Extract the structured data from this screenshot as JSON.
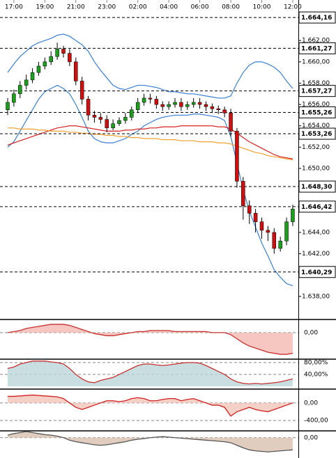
{
  "chart_data": [
    {
      "type": "candlestick",
      "categories": [
        null,
        "17:00",
        null,
        null,
        null,
        null,
        "19:00",
        null,
        null,
        null,
        null,
        "21:00",
        null,
        null,
        null,
        null,
        "23:00",
        null,
        null,
        null,
        null,
        "02:00",
        null,
        null,
        null,
        null,
        "04:00",
        null,
        null,
        null,
        null,
        "06:00",
        null,
        null,
        null,
        null,
        "08:00",
        null,
        null,
        null,
        null,
        "10:00",
        null,
        null,
        null,
        null,
        "12:00"
      ],
      "open": [
        1.6555,
        1.6562,
        1.657,
        1.6578,
        1.6583,
        1.659,
        1.6596,
        1.66,
        1.6605,
        1.6612,
        1.6608,
        1.66,
        1.6582,
        1.6565,
        1.655,
        1.6548,
        1.6546,
        1.6538,
        1.6542,
        1.6545,
        1.6548,
        1.6555,
        1.6562,
        1.6566,
        1.6565,
        1.656,
        1.6558,
        1.656,
        1.6562,
        1.6558,
        1.656,
        1.6562,
        1.656,
        1.6558,
        1.6556,
        1.6555,
        1.6552,
        1.6535,
        1.6488,
        1.6465,
        1.6458,
        1.645,
        1.6442,
        1.644,
        1.6425,
        1.6432,
        1.645
      ],
      "high": [
        1.6566,
        1.6574,
        1.6582,
        1.6588,
        1.6594,
        1.66,
        1.6604,
        1.661,
        1.6618,
        1.6615,
        1.6612,
        1.6604,
        1.6586,
        1.6568,
        1.6554,
        1.6552,
        1.655,
        1.6546,
        1.6548,
        1.6552,
        1.6558,
        1.6566,
        1.657,
        1.657,
        1.6568,
        1.6563,
        1.6563,
        1.6566,
        1.6566,
        1.6563,
        1.6566,
        1.6566,
        1.6563,
        1.6561,
        1.6559,
        1.6558,
        1.6556,
        1.6538,
        1.6492,
        1.647,
        1.6462,
        1.6454,
        1.6446,
        1.6444,
        1.6436,
        1.6454,
        1.6466
      ],
      "low": [
        1.655,
        1.6558,
        1.6566,
        1.6574,
        1.658,
        1.6587,
        1.6593,
        1.6597,
        1.6602,
        1.6604,
        1.6596,
        1.6578,
        1.656,
        1.6545,
        1.6543,
        1.6542,
        1.6534,
        1.6536,
        1.654,
        1.6542,
        1.6545,
        1.6552,
        1.6559,
        1.6561,
        1.6556,
        1.6554,
        1.6555,
        1.6557,
        1.6554,
        1.6555,
        1.6557,
        1.6556,
        1.6554,
        1.6552,
        1.6551,
        1.6548,
        1.653,
        1.6482,
        1.6452,
        1.6448,
        1.644,
        1.6434,
        1.6432,
        1.642,
        1.6422,
        1.6428,
        1.6446
      ],
      "close": [
        1.6562,
        1.657,
        1.6578,
        1.6583,
        1.659,
        1.6596,
        1.66,
        1.6605,
        1.6612,
        1.6608,
        1.66,
        1.6582,
        1.6565,
        1.655,
        1.6548,
        1.6546,
        1.6538,
        1.6542,
        1.6545,
        1.6548,
        1.6555,
        1.6562,
        1.6566,
        1.6565,
        1.656,
        1.6558,
        1.656,
        1.6562,
        1.6558,
        1.656,
        1.6562,
        1.656,
        1.6558,
        1.6556,
        1.6555,
        1.6552,
        1.6535,
        1.6488,
        1.6465,
        1.6458,
        1.645,
        1.6442,
        1.644,
        1.6425,
        1.6432,
        1.645,
        1.6462
      ],
      "up_color": "#1e9e1e",
      "down_color": "#cc1010",
      "series": [
        {
          "color": "#3a7fd5",
          "values": [
            1.659,
            1.6598,
            1.6605,
            1.661,
            1.6615,
            1.6618,
            1.662,
            1.6622,
            1.6625,
            1.6626,
            1.6624,
            1.662,
            1.6616,
            1.661,
            1.66,
            1.6592,
            1.6585,
            1.6578,
            1.6575,
            1.6574,
            1.6576,
            1.6578,
            1.6578,
            1.6577,
            1.6576,
            1.6574,
            1.6572,
            1.6572,
            1.6571,
            1.657,
            1.657,
            1.6569,
            1.6568,
            1.6567,
            1.6566,
            1.6566,
            1.6568,
            1.658,
            1.659,
            1.6597,
            1.66,
            1.66,
            1.6598,
            1.6595,
            1.659,
            1.6582,
            1.6575
          ]
        },
        {
          "color": "#3a7fd5",
          "values": [
            1.652,
            1.6525,
            1.6535,
            1.6545,
            1.6555,
            1.6565,
            1.6572,
            1.6575,
            1.6578,
            1.6575,
            1.657,
            1.656,
            1.6548,
            1.6535,
            1.6528,
            1.6525,
            1.6524,
            1.6524,
            1.6526,
            1.6528,
            1.6532,
            1.6535,
            1.654,
            1.6543,
            1.6546,
            1.6548,
            1.6549,
            1.655,
            1.655,
            1.655,
            1.6551,
            1.6551,
            1.655,
            1.6549,
            1.6548,
            1.6545,
            1.653,
            1.6505,
            1.648,
            1.646,
            1.6445,
            1.643,
            1.6418,
            1.6405,
            1.6398,
            1.6392,
            1.639
          ]
        },
        {
          "color": "#d62020",
          "values": [
            1.6522,
            1.6524,
            1.6526,
            1.6528,
            1.653,
            1.6532,
            1.6534,
            1.6536,
            1.6538,
            1.6539,
            1.654,
            1.654,
            1.6539,
            1.6538,
            1.6537,
            1.6536,
            1.6535,
            1.6535,
            1.6535,
            1.6536,
            1.6536,
            1.6537,
            1.6537,
            1.6538,
            1.6538,
            1.6539,
            1.6539,
            1.6539,
            1.654,
            1.654,
            1.654,
            1.654,
            1.654,
            1.654,
            1.6539,
            1.6539,
            1.6537,
            1.6533,
            1.6529,
            1.6525,
            1.6522,
            1.6519,
            1.6516,
            1.6513,
            1.6511,
            1.651,
            1.6509
          ]
        },
        {
          "color": "#f0a030",
          "values": [
            1.6538,
            1.6538,
            1.6537,
            1.6537,
            1.6537,
            1.6536,
            1.6536,
            1.6535,
            1.6535,
            1.6535,
            1.6534,
            1.6534,
            1.6533,
            1.6533,
            1.6532,
            1.6532,
            1.6531,
            1.6531,
            1.653,
            1.653,
            1.6529,
            1.6529,
            1.6528,
            1.6528,
            1.6528,
            1.6527,
            1.6527,
            1.6527,
            1.6526,
            1.6526,
            1.6526,
            1.6525,
            1.6525,
            1.6525,
            1.6524,
            1.6524,
            1.6523,
            1.6521,
            1.6519,
            1.6517,
            1.6515,
            1.6514,
            1.6512,
            1.6511,
            1.651,
            1.6509,
            1.6508
          ]
        }
      ],
      "ylim": [
        1.6359,
        1.6658
      ],
      "yticks": [
        {
          "value": 1.662,
          "label": "1.662,00"
        },
        {
          "value": 1.66,
          "label": "1.660,00"
        },
        {
          "value": 1.658,
          "label": "1.658,00"
        },
        {
          "value": 1.656,
          "label": "1.656,00"
        },
        {
          "value": 1.654,
          "label": "1.654,00"
        },
        {
          "value": 1.652,
          "label": "1.652,00"
        },
        {
          "value": 1.65,
          "label": "1.650,00"
        },
        {
          "value": 1.644,
          "label": "1.644,00"
        },
        {
          "value": 1.642,
          "label": "1.642,00"
        },
        {
          "value": 1.638,
          "label": "1.638,00"
        }
      ],
      "levels": [
        {
          "value": 1.66416,
          "label": "1.664,16"
        },
        {
          "value": 1.66127,
          "label": "1.661,27"
        },
        {
          "value": 1.65727,
          "label": "1.657,27"
        },
        {
          "value": 1.65526,
          "label": "1.655,26"
        },
        {
          "value": 1.65326,
          "label": "1.653,26"
        },
        {
          "value": 1.6483,
          "label": "1.648,30"
        },
        {
          "value": 1.64642,
          "label": "1.646,42"
        },
        {
          "value": 1.64029,
          "label": "1.640,29"
        }
      ]
    },
    {
      "type": "line",
      "color": "#c83030",
      "fill": "#f4b8b0",
      "values": [
        0,
        1,
        2,
        4,
        5,
        6,
        7,
        8,
        8,
        8,
        7,
        5,
        3,
        1,
        -1,
        -2,
        -3,
        -3,
        -2,
        -1,
        0,
        1,
        1,
        2,
        2,
        2,
        2,
        1,
        1,
        1,
        1,
        1,
        1,
        0,
        0,
        0,
        -2,
        -6,
        -10,
        -13,
        -15,
        -17,
        -19,
        -20,
        -21,
        -21,
        -20
      ],
      "ylim": [
        -25,
        12
      ],
      "yticks": [
        {
          "value": 0,
          "label": "0,00"
        }
      ]
    },
    {
      "type": "line",
      "color": "#c83030",
      "fill": "#bcd6d8",
      "values": [
        60,
        65,
        75,
        80,
        85,
        85,
        85,
        82,
        80,
        75,
        60,
        40,
        25,
        15,
        12,
        20,
        25,
        30,
        40,
        50,
        60,
        70,
        75,
        75,
        72,
        70,
        72,
        75,
        78,
        80,
        80,
        78,
        70,
        60,
        50,
        40,
        25,
        15,
        10,
        8,
        10,
        8,
        10,
        12,
        15,
        20,
        25
      ],
      "ylim": [
        -7,
        89
      ],
      "yticks": [
        {
          "value": 80,
          "label": "80,00%"
        },
        {
          "value": 40,
          "label": "40,00%"
        }
      ]
    },
    {
      "type": "line",
      "color": "#d02020",
      "fill": "#f2c4b8",
      "values": [
        150,
        150,
        160,
        170,
        180,
        170,
        160,
        150,
        140,
        100,
        0,
        -100,
        -150,
        -100,
        -50,
        0,
        50,
        50,
        30,
        50,
        100,
        120,
        100,
        50,
        50,
        80,
        100,
        100,
        50,
        80,
        100,
        50,
        0,
        -50,
        -50,
        -100,
        -300,
        -200,
        -150,
        -100,
        -150,
        -180,
        -200,
        -150,
        -100,
        -50,
        0
      ],
      "ylim": [
        -620,
        300
      ],
      "yticks": [
        {
          "value": 0,
          "label": "0,00"
        },
        {
          "value": -400,
          "label": "-400,00"
        }
      ]
    },
    {
      "type": "line",
      "color": "#555555",
      "fill": "#d8c0b0",
      "values": [
        5,
        8,
        10,
        12,
        10,
        8,
        6,
        5,
        3,
        0,
        -5,
        -8,
        -10,
        -12,
        -14,
        -15,
        -14,
        -12,
        -10,
        -8,
        -5,
        -3,
        -2,
        0,
        1,
        2,
        1,
        0,
        -1,
        -2,
        -3,
        -4,
        -5,
        -6,
        -7,
        -8,
        -10,
        -15,
        -20,
        -24,
        -26,
        -27,
        -28,
        -27,
        -26,
        -25,
        -24
      ],
      "ylim": [
        -40,
        12
      ],
      "yticks": [
        {
          "value": 0,
          "label": "0,00"
        }
      ]
    }
  ]
}
